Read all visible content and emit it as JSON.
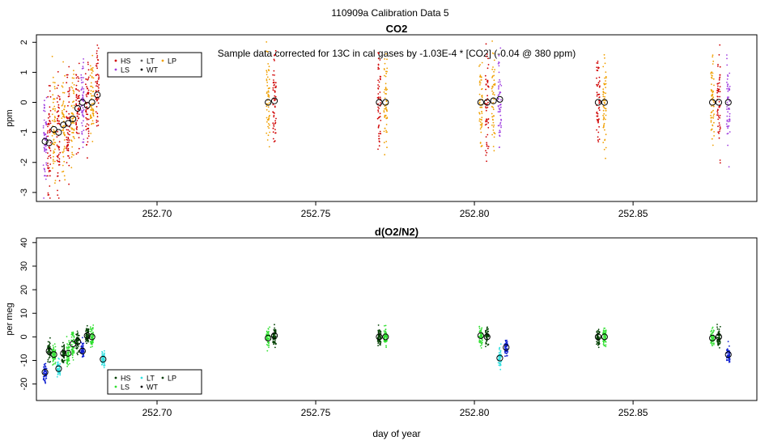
{
  "figure": {
    "title": "110909a   Calibration Data 5",
    "xlabel": "day of year"
  },
  "legend_colors": {
    "HS": "#d00000",
    "LS": "#a040e0",
    "LT": "#606060",
    "WT": "#000000",
    "LP": "#f0a000"
  },
  "chart_data": [
    {
      "type": "scatter",
      "title": "CO2",
      "annotation": "Sample data corrected for 13C in cal gases by -1.03E-4 * [CO2] (-0.04 @ 380 ppm)",
      "ylabel": "ppm",
      "xlim": [
        252.662,
        252.889
      ],
      "ylim": [
        -3.3,
        2.25
      ],
      "xticks": [
        252.7,
        252.75,
        252.8,
        252.85
      ],
      "xtick_labels": [
        "252.70",
        "252.75",
        "252.80",
        "252.85"
      ],
      "yticks": [
        -3,
        -2,
        -1,
        0,
        1,
        2
      ],
      "ytick_labels": [
        "-3",
        "-2",
        "-1",
        "0",
        "1",
        "2"
      ],
      "grid": false,
      "legend": {
        "placement": "top-left",
        "entries": [
          {
            "label": "HS",
            "color": "#d00000"
          },
          {
            "label": "LT",
            "color": "#606060"
          },
          {
            "label": "LP",
            "color": "#f0a000"
          },
          {
            "label": "LS",
            "color": "#a040e0"
          },
          {
            "label": "WT",
            "color": "#000000"
          }
        ]
      },
      "groups": [
        {
          "x": 252.6647,
          "mean": -1.3,
          "spread": 1.1,
          "color": "#a040e0"
        },
        {
          "x": 252.666,
          "mean": -1.35,
          "spread": 1.2,
          "color": "#d00000"
        },
        {
          "x": 252.6675,
          "mean": -0.9,
          "spread": 1.1,
          "color": "#f0a000"
        },
        {
          "x": 252.669,
          "mean": -1.0,
          "spread": 1.1,
          "color": "#d00000"
        },
        {
          "x": 252.6705,
          "mean": -0.75,
          "spread": 1.0,
          "color": "#f0a000"
        },
        {
          "x": 252.672,
          "mean": -0.7,
          "spread": 1.0,
          "color": "#d00000"
        },
        {
          "x": 252.6735,
          "mean": -0.55,
          "spread": 1.0,
          "color": "#f0a000"
        },
        {
          "x": 252.675,
          "mean": -0.2,
          "spread": 0.9,
          "color": "#d00000"
        },
        {
          "x": 252.6765,
          "mean": 0.0,
          "spread": 0.9,
          "color": "#a040e0"
        },
        {
          "x": 252.678,
          "mean": -0.1,
          "spread": 0.9,
          "color": "#d00000"
        },
        {
          "x": 252.6795,
          "mean": 0.0,
          "spread": 0.9,
          "color": "#f0a000"
        },
        {
          "x": 252.6812,
          "mean": 0.25,
          "spread": 0.9,
          "color": "#d00000"
        },
        {
          "x": 252.735,
          "mean": 0.0,
          "spread": 1.0,
          "color": "#f0a000"
        },
        {
          "x": 252.737,
          "mean": 0.05,
          "spread": 1.0,
          "color": "#d00000"
        },
        {
          "x": 252.77,
          "mean": 0.0,
          "spread": 1.0,
          "color": "#d00000"
        },
        {
          "x": 252.772,
          "mean": 0.0,
          "spread": 1.0,
          "color": "#f0a000"
        },
        {
          "x": 252.802,
          "mean": 0.0,
          "spread": 1.0,
          "color": "#f0a000"
        },
        {
          "x": 252.804,
          "mean": 0.0,
          "spread": 1.0,
          "color": "#d00000"
        },
        {
          "x": 252.806,
          "mean": 0.05,
          "spread": 1.0,
          "color": "#f0a000"
        },
        {
          "x": 252.808,
          "mean": 0.1,
          "spread": 1.0,
          "color": "#a040e0"
        },
        {
          "x": 252.839,
          "mean": 0.0,
          "spread": 1.1,
          "color": "#d00000"
        },
        {
          "x": 252.841,
          "mean": 0.0,
          "spread": 1.1,
          "color": "#f0a000"
        },
        {
          "x": 252.875,
          "mean": 0.0,
          "spread": 1.0,
          "color": "#f0a000"
        },
        {
          "x": 252.877,
          "mean": 0.0,
          "spread": 1.0,
          "color": "#d00000"
        },
        {
          "x": 252.88,
          "mean": 0.0,
          "spread": 1.0,
          "color": "#a040e0"
        }
      ]
    },
    {
      "type": "scatter",
      "title": "d(O2/N2)",
      "ylabel": "per meg",
      "xlim": [
        252.662,
        252.889
      ],
      "ylim": [
        -27,
        42
      ],
      "xticks": [
        252.7,
        252.75,
        252.8,
        252.85
      ],
      "xtick_labels": [
        "252.70",
        "252.75",
        "252.80",
        "252.85"
      ],
      "yticks": [
        -20,
        -10,
        0,
        10,
        20,
        30,
        40
      ],
      "ytick_labels": [
        "-20",
        "-10",
        "0",
        "10",
        "20",
        "30",
        "40"
      ],
      "grid": false,
      "legend": {
        "placement": "bottom-left",
        "entries": [
          {
            "label": "HS",
            "color": "#004000"
          },
          {
            "label": "LT",
            "color": "#30e0e0"
          },
          {
            "label": "LP",
            "color": "#104010"
          },
          {
            "label": "LS",
            "color": "#30e030"
          },
          {
            "label": "WT",
            "color": "#000000"
          }
        ]
      },
      "groups": [
        {
          "x": 252.6647,
          "mean": -15.0,
          "spread": 2.5,
          "color": "#1020d0"
        },
        {
          "x": 252.666,
          "mean": -6.0,
          "spread": 2.5,
          "color": "#004000"
        },
        {
          "x": 252.6675,
          "mean": -7.5,
          "spread": 2.5,
          "color": "#30e030"
        },
        {
          "x": 252.669,
          "mean": -13.5,
          "spread": 2.5,
          "color": "#30e0e0"
        },
        {
          "x": 252.6705,
          "mean": -7.0,
          "spread": 2.5,
          "color": "#004000"
        },
        {
          "x": 252.672,
          "mean": -7.0,
          "spread": 3.5,
          "color": "#30e030"
        },
        {
          "x": 252.6735,
          "mean": -3.0,
          "spread": 4.0,
          "color": "#30e030"
        },
        {
          "x": 252.675,
          "mean": -2.0,
          "spread": 2.5,
          "color": "#004000"
        },
        {
          "x": 252.6765,
          "mean": -6.0,
          "spread": 2.5,
          "color": "#1020d0"
        },
        {
          "x": 252.678,
          "mean": 0.5,
          "spread": 2.5,
          "color": "#004000"
        },
        {
          "x": 252.6795,
          "mean": 0.0,
          "spread": 2.5,
          "color": "#30e030"
        },
        {
          "x": 252.683,
          "mean": -9.5,
          "spread": 2.5,
          "color": "#30e0e0"
        },
        {
          "x": 252.735,
          "mean": -0.5,
          "spread": 2.5,
          "color": "#30e030"
        },
        {
          "x": 252.737,
          "mean": 0.5,
          "spread": 2.5,
          "color": "#004000"
        },
        {
          "x": 252.77,
          "mean": 0.0,
          "spread": 2.5,
          "color": "#004000"
        },
        {
          "x": 252.772,
          "mean": 0.0,
          "spread": 2.5,
          "color": "#30e030"
        },
        {
          "x": 252.802,
          "mean": 0.5,
          "spread": 2.5,
          "color": "#30e030"
        },
        {
          "x": 252.804,
          "mean": 0.0,
          "spread": 2.5,
          "color": "#004000"
        },
        {
          "x": 252.808,
          "mean": -9.0,
          "spread": 3.0,
          "color": "#30e0e0"
        },
        {
          "x": 252.81,
          "mean": -4.5,
          "spread": 2.5,
          "color": "#1020d0"
        },
        {
          "x": 252.839,
          "mean": 0.0,
          "spread": 2.5,
          "color": "#004000"
        },
        {
          "x": 252.841,
          "mean": 0.0,
          "spread": 2.5,
          "color": "#30e030"
        },
        {
          "x": 252.875,
          "mean": -0.5,
          "spread": 2.5,
          "color": "#30e030"
        },
        {
          "x": 252.877,
          "mean": 0.0,
          "spread": 2.5,
          "color": "#004000"
        },
        {
          "x": 252.88,
          "mean": -7.5,
          "spread": 2.5,
          "color": "#1020d0"
        }
      ]
    }
  ]
}
